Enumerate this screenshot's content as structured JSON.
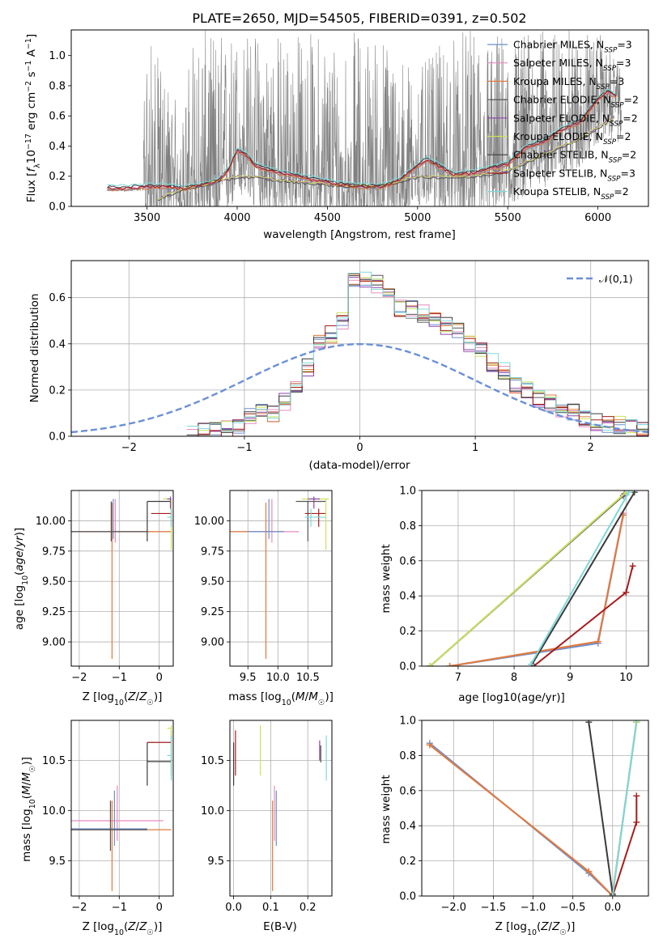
{
  "colors": {
    "Chabrier MILES": "#6a8fcf",
    "Salpeter MILES": "#e88bbf",
    "Kroupa MILES": "#e07a3a",
    "Chabrier ELODIE": "#555555",
    "Salpeter ELODIE": "#8e44ad",
    "Kroupa ELODIE": "#c9e35a",
    "Chabrier STELIB": "#3b3b3b",
    "Salpeter STELIB": "#a51c1c",
    "Kroupa STELIB": "#7fd8d8",
    "spectrum": "#808080",
    "gaussian": "#6a8fd8",
    "grid": "#b0b0b0"
  },
  "chart_data": [
    {
      "id": "spectrum",
      "type": "line",
      "title": "PLATE=2650, MJD=54505, FIBERID=0391, z=0.502",
      "xlabel": "wavelength [Angstrom, rest frame]",
      "ylabel": "Flux [f_λ 10^-17 erg cm^-2 s^-1 A^-1]",
      "xlim": [
        3080,
        6280
      ],
      "ylim": [
        0,
        1.17
      ],
      "xticks": [
        "3500",
        "4000",
        "4500",
        "5000",
        "5500",
        "6000"
      ],
      "yticks": [
        "0.0",
        "0.2",
        "0.4",
        "0.6",
        "0.8",
        "1.0"
      ],
      "grid": false,
      "legend_position": "top-right",
      "legend": [
        "Chabrier MILES, N_SSP=3",
        "Salpeter MILES, N_SSP=3",
        "Kroupa MILES, N_SSP=3",
        "Chabrier ELODIE, N_SSP=2",
        "Salpeter ELODIE, N_SSP=2",
        "Kroupa ELODIE, N_SSP=2",
        "Chabrier STELIB, N_SSP=2",
        "Salpeter STELIB, N_SSP=3",
        "Kroupa STELIB, N_SSP=2"
      ],
      "model_profile": {
        "x": [
          3280,
          3400,
          3500,
          3600,
          3700,
          3800,
          3900,
          3950,
          4000,
          4050,
          4100,
          4200,
          4300,
          4400,
          4500,
          4600,
          4700,
          4800,
          4900,
          5000,
          5050,
          5100,
          5200,
          5300,
          5400,
          5500,
          5600,
          5700,
          5800,
          5900,
          6000,
          6050,
          6100
        ],
        "y": [
          0.11,
          0.11,
          0.12,
          0.12,
          0.11,
          0.13,
          0.16,
          0.23,
          0.36,
          0.33,
          0.26,
          0.22,
          0.2,
          0.17,
          0.15,
          0.13,
          0.12,
          0.12,
          0.16,
          0.26,
          0.3,
          0.27,
          0.2,
          0.21,
          0.24,
          0.27,
          0.38,
          0.42,
          0.5,
          0.55,
          0.7,
          0.75,
          0.72
        ]
      },
      "elodie_profile": {
        "x": [
          3560,
          3700,
          3800,
          3900,
          4000,
          4100,
          4200,
          4400,
          4600,
          4800,
          5000,
          5100,
          5300,
          5500,
          5700,
          5900,
          6100
        ],
        "y": [
          0.05,
          0.12,
          0.14,
          0.17,
          0.2,
          0.2,
          0.18,
          0.16,
          0.14,
          0.14,
          0.2,
          0.2,
          0.2,
          0.24,
          0.35,
          0.45,
          0.6
        ]
      },
      "flux_noise_envelope": {
        "x": [
          3280,
          3460,
          3500,
          3700,
          3750,
          4000,
          4200,
          4600,
          4800,
          5000,
          5200,
          5400,
          5600,
          6000,
          6130
        ],
        "ymax": [
          0.12,
          0.15,
          1.17,
          0.6,
          1.17,
          1.17,
          1.17,
          1.17,
          1.17,
          0.9,
          1.17,
          1.17,
          1.17,
          1.17,
          0.9
        ]
      }
    },
    {
      "id": "residuals",
      "type": "line",
      "xlabel": "(data-model)/error",
      "ylabel": "Normed distribution",
      "xlim": [
        -2.5,
        2.5
      ],
      "ylim": [
        0,
        0.76
      ],
      "xticks": [
        "−2",
        "−1",
        "0",
        "1",
        "2"
      ],
      "yticks": [
        "0.0",
        "0.2",
        "0.4",
        "0.6"
      ],
      "grid": true,
      "legend_position": "top-right",
      "legend": [
        "𝒩(0,1)"
      ],
      "hist_bin_edges": [
        -1.5,
        -1.4,
        -1.3,
        -1.2,
        -1.1,
        -1.0,
        -0.9,
        -0.8,
        -0.7,
        -0.6,
        -0.5,
        -0.4,
        -0.3,
        -0.2,
        -0.1,
        0.0,
        0.1,
        0.2,
        0.3,
        0.4,
        0.5,
        0.6,
        0.7,
        0.8,
        0.9,
        1.0,
        1.1,
        1.2,
        1.3,
        1.4,
        1.5,
        1.6,
        1.7,
        1.8,
        1.9,
        2.0,
        2.1,
        2.2,
        2.3,
        2.4,
        2.5
      ],
      "hist_base": [
        0.01,
        0.02,
        0.02,
        0.03,
        0.05,
        0.08,
        0.1,
        0.1,
        0.15,
        0.2,
        0.3,
        0.4,
        0.44,
        0.5,
        0.67,
        0.68,
        0.66,
        0.62,
        0.55,
        0.55,
        0.53,
        0.5,
        0.48,
        0.45,
        0.4,
        0.38,
        0.32,
        0.28,
        0.22,
        0.2,
        0.16,
        0.14,
        0.12,
        0.1,
        0.08,
        0.06,
        0.05,
        0.05,
        0.04,
        0.03
      ]
    },
    {
      "id": "age-vs-Z",
      "type": "scatter",
      "xlabel": "Z [log10(Z/Z☉)]",
      "ylabel": "age [log10(age/yr)]",
      "xlim": [
        -2.2,
        0.35
      ],
      "ylim": [
        8.8,
        10.25
      ],
      "xticks": [
        "−2",
        "−1",
        "0"
      ],
      "yticks": [
        "9.00",
        "9.25",
        "9.50",
        "9.75",
        "10.00"
      ],
      "grid": true
    },
    {
      "id": "age-vs-mass",
      "type": "scatter",
      "xlabel": "mass [log10(M/M☉)]",
      "ylabel": "",
      "xlim": [
        9.2,
        10.9
      ],
      "ylim": [
        8.8,
        10.25
      ],
      "xticks": [
        "9.5",
        "10.0",
        "10.5"
      ],
      "yticks": [
        "9.00",
        "9.25",
        "9.50",
        "9.75",
        "10.00"
      ],
      "grid": true
    },
    {
      "id": "weight-vs-age",
      "type": "line",
      "xlabel": "age [log10(age/yr)]",
      "ylabel": "mass weight",
      "xlim": [
        6.35,
        10.4
      ],
      "ylim": [
        0,
        1.0
      ],
      "xticks": [
        "7",
        "8",
        "9",
        "10"
      ],
      "yticks": [
        "0.0",
        "0.2",
        "0.4",
        "0.6",
        "0.8",
        "1.0"
      ],
      "grid": true,
      "series": [
        {
          "name": "Chabrier MILES",
          "x": [
            6.85,
            9.5,
            9.95
          ],
          "y": [
            0.0,
            0.13,
            0.86
          ]
        },
        {
          "name": "Salpeter MILES",
          "x": [
            6.85,
            9.5,
            9.95
          ],
          "y": [
            0.0,
            0.14,
            0.87
          ]
        },
        {
          "name": "Kroupa MILES",
          "x": [
            6.85,
            9.5,
            9.95
          ],
          "y": [
            0.0,
            0.14,
            0.86
          ]
        },
        {
          "name": "Chabrier ELODIE",
          "x": [
            6.5,
            9.95
          ],
          "y": [
            0.0,
            0.97
          ]
        },
        {
          "name": "Salpeter ELODIE",
          "x": [
            6.5,
            9.97
          ],
          "y": [
            0.0,
            0.98
          ]
        },
        {
          "name": "Kroupa ELODIE",
          "x": [
            6.5,
            10.0
          ],
          "y": [
            0.0,
            0.99
          ]
        },
        {
          "name": "Chabrier STELIB",
          "x": [
            8.32,
            10.15
          ],
          "y": [
            0.01,
            0.99
          ]
        },
        {
          "name": "Salpeter STELIB",
          "x": [
            8.35,
            10.0,
            10.12
          ],
          "y": [
            0.0,
            0.42,
            0.57
          ]
        },
        {
          "name": "Kroupa STELIB",
          "x": [
            8.3,
            10.05
          ],
          "y": [
            0.01,
            0.99
          ]
        }
      ]
    },
    {
      "id": "mass-vs-Z",
      "type": "scatter",
      "xlabel": "Z [log10(Z/Z☉)]",
      "ylabel": "mass [log10(M/M☉)]",
      "xlim": [
        -2.2,
        0.35
      ],
      "ylim": [
        9.15,
        10.9
      ],
      "xticks": [
        "−2",
        "−1",
        "0"
      ],
      "yticks": [
        "9.5",
        "10.0",
        "10.5"
      ],
      "grid": true
    },
    {
      "id": "mass-vs-EBV",
      "type": "scatter",
      "xlabel": "E(B-V)",
      "ylabel": "",
      "xlim": [
        -0.01,
        0.265
      ],
      "ylim": [
        9.15,
        10.9
      ],
      "xticks": [
        "0.0",
        "0.1",
        "0.2"
      ],
      "yticks": [
        "9.5",
        "10.0",
        "10.5"
      ],
      "grid": true
    },
    {
      "id": "weight-vs-Z",
      "type": "line",
      "xlabel": "Z [log10(Z/Z☉)]",
      "ylabel": "mass weight",
      "xlim": [
        -2.4,
        0.45
      ],
      "ylim": [
        0,
        1.0
      ],
      "xticks": [
        "−2.0",
        "−1.5",
        "−1.0",
        "−0.5",
        "0.0"
      ],
      "yticks": [
        "0.0",
        "0.2",
        "0.4",
        "0.6",
        "0.8",
        "1.0"
      ],
      "grid": true,
      "series": [
        {
          "name": "Chabrier MILES",
          "x": [
            -2.3,
            -0.3,
            0.0
          ],
          "y": [
            0.87,
            0.13,
            0.0
          ]
        },
        {
          "name": "Salpeter MILES",
          "x": [
            -2.3,
            -0.3,
            0.0
          ],
          "y": [
            0.86,
            0.14,
            0.0
          ]
        },
        {
          "name": "Kroupa MILES",
          "x": [
            -2.3,
            -0.3,
            0.0
          ],
          "y": [
            0.86,
            0.14,
            0.0
          ]
        },
        {
          "name": "Chabrier ELODIE",
          "x": [
            0.0,
            0.3
          ],
          "y": [
            0.01,
            0.99
          ]
        },
        {
          "name": "Salpeter ELODIE",
          "x": [
            0.0,
            0.3
          ],
          "y": [
            0.01,
            0.99
          ]
        },
        {
          "name": "Kroupa ELODIE",
          "x": [
            0.0,
            0.3
          ],
          "y": [
            0.01,
            0.99
          ]
        },
        {
          "name": "Chabrier STELIB",
          "x": [
            -0.3,
            0.0
          ],
          "y": [
            0.99,
            0.01
          ]
        },
        {
          "name": "Salpeter STELIB",
          "x": [
            0.0,
            0.3,
            0.3
          ],
          "y": [
            0.0,
            0.42,
            0.57
          ]
        },
        {
          "name": "Kroupa STELIB",
          "x": [
            0.0,
            0.3
          ],
          "y": [
            0.0,
            1.0
          ]
        }
      ]
    }
  ]
}
